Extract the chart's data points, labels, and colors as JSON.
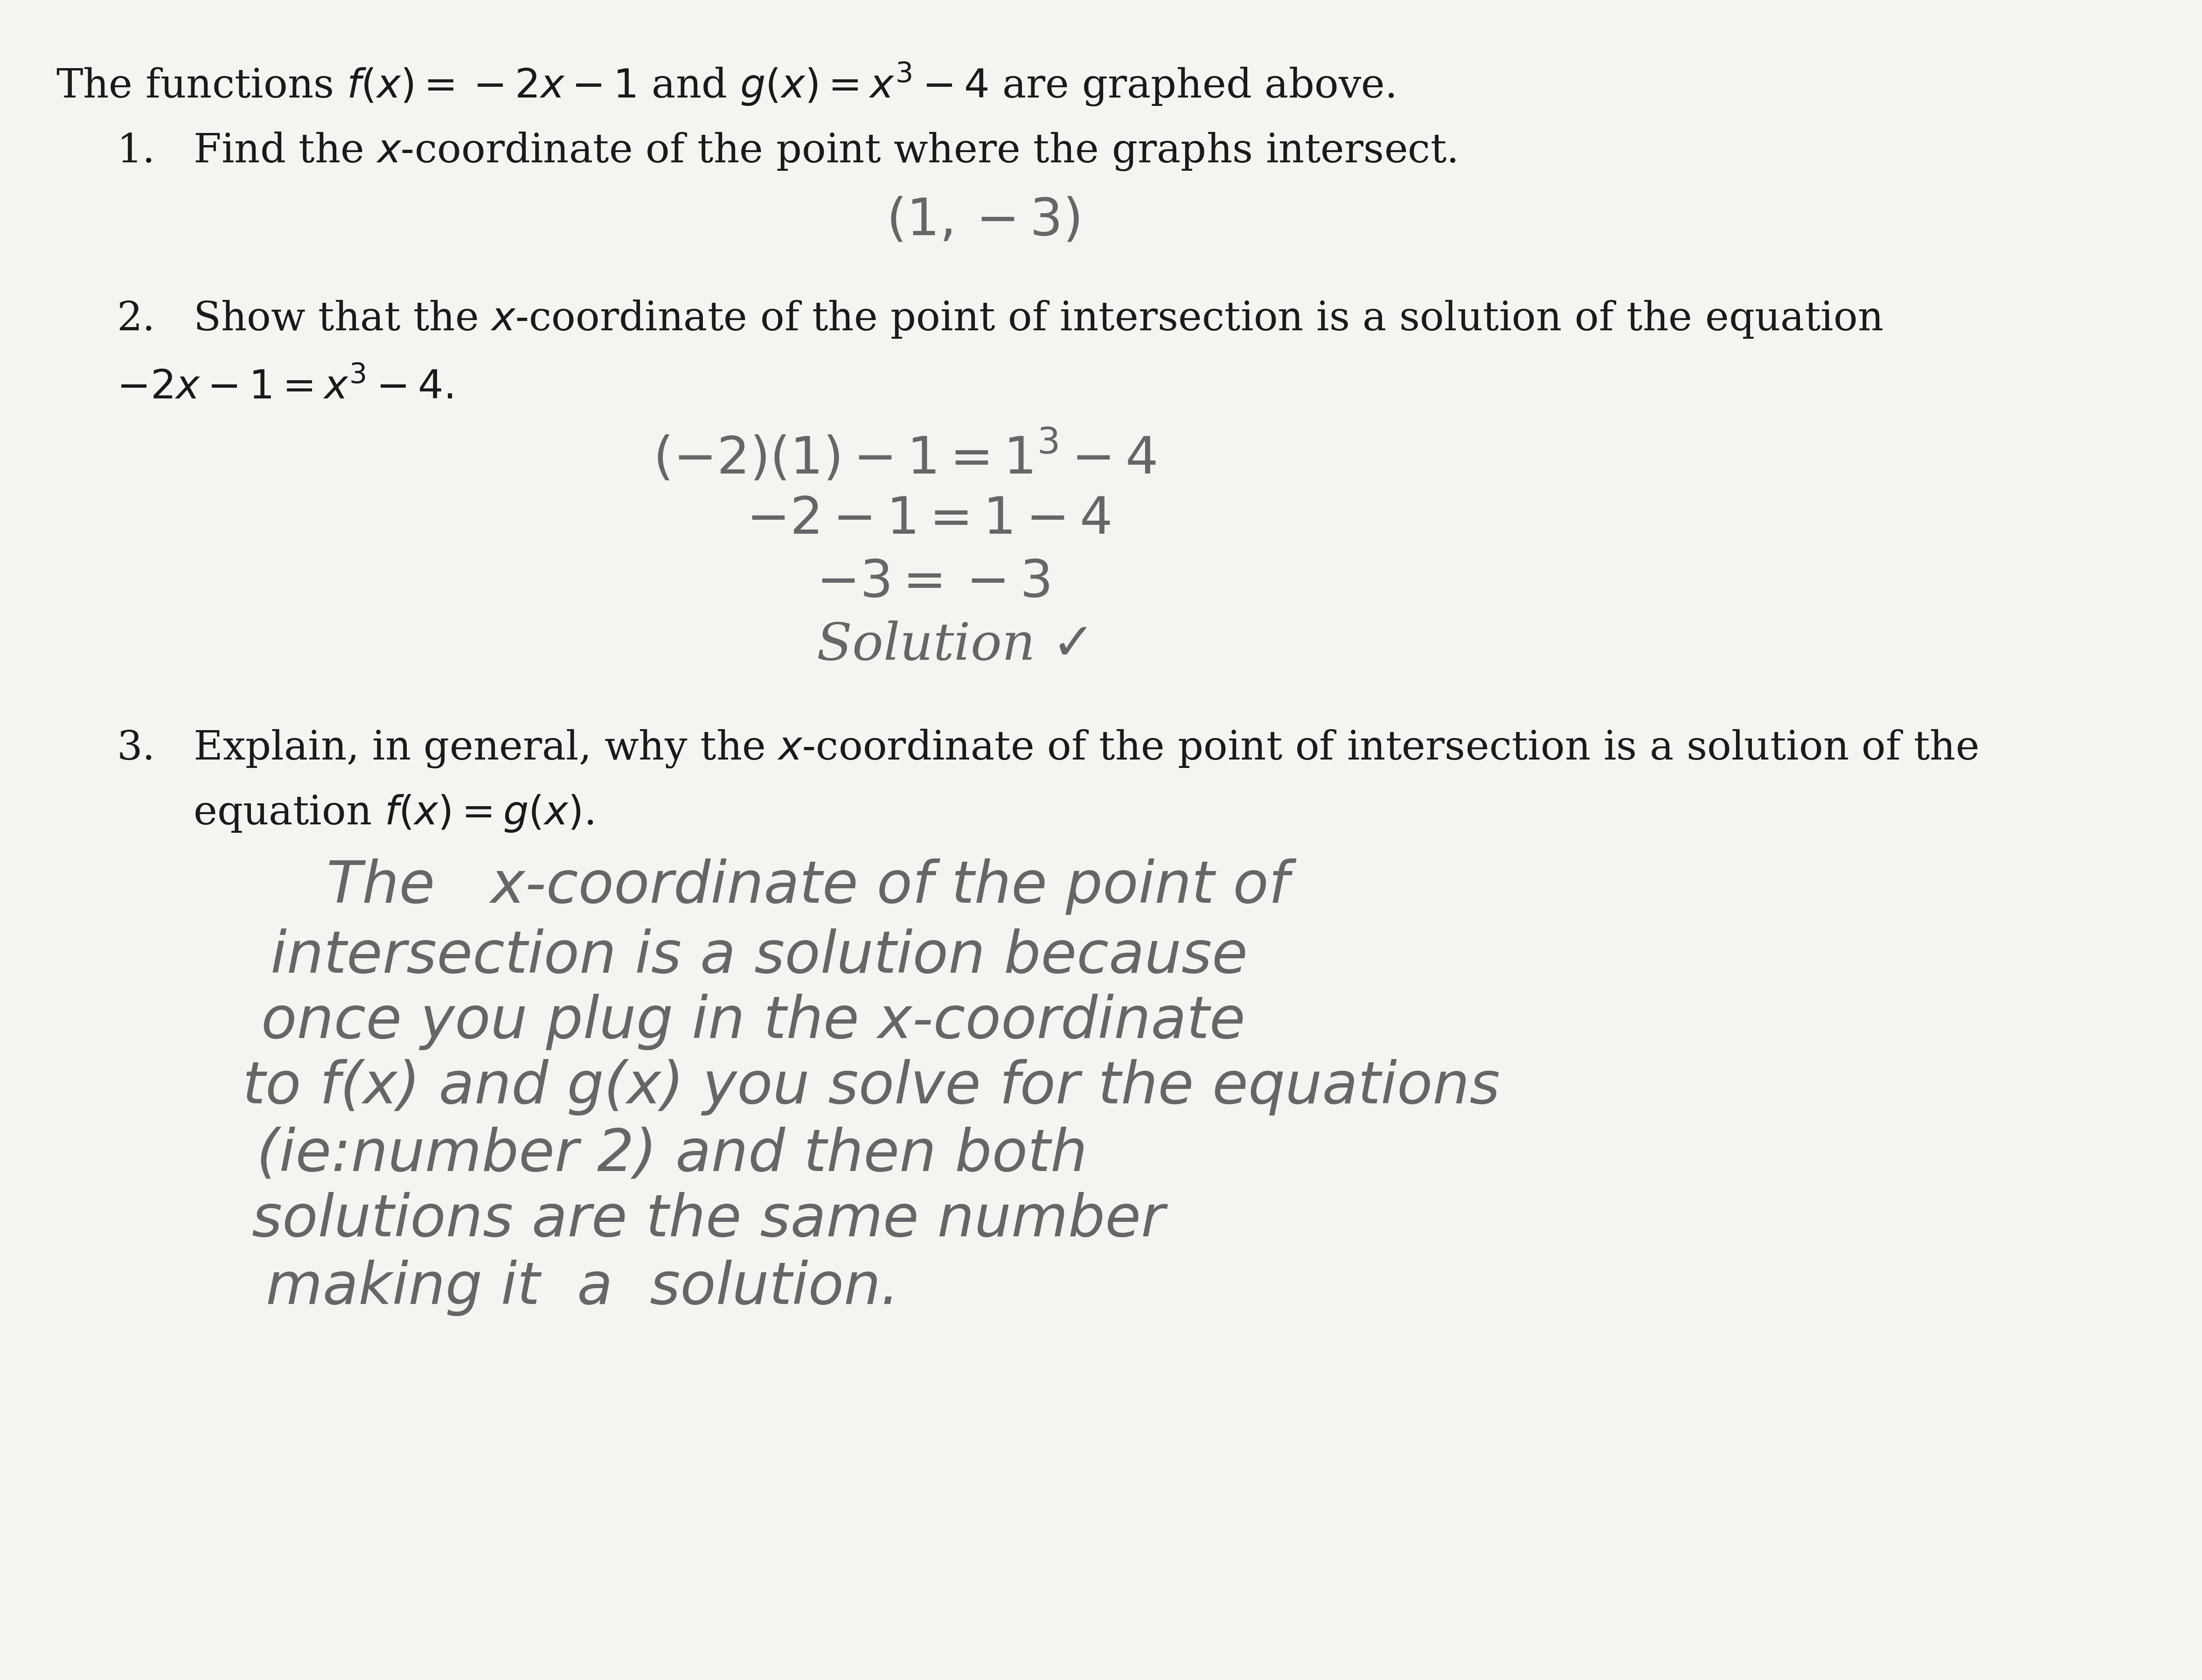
{
  "background_color": "#f5f4f1",
  "text_color": "#1a1a1a",
  "handwriting_color": "#666666",
  "title_line": "The functions $f(x) = -2x - 1$ and $g(x) = x^3 - 4$ are graphed above.",
  "q1_label": "1.   Find the $x$-coordinate of the point where the graphs intersect.",
  "q1_answer": "$(1, -3)$",
  "q2_label": "2.   Show that the $x$-coordinate of the point of intersection is a solution of the equation",
  "q2_equation": "$-2x - 1 = x^3 - 4.$",
  "q2_work_line1": "$(-2)(1) - 1 = 1^3 - 4$",
  "q2_work_line2": "$-2 - 1 = 1 - 4$",
  "q2_work_line3": "$-3 = -3$",
  "q2_work_line4": "Solution $\\checkmark$",
  "q3_label": "3.   Explain, in general, why the $x$-coordinate of the point of intersection is a solution of the",
  "q3_label2": "      equation $f(x) = g(x)$.",
  "q3_answer_line1": "The   x-coordinate of the point of",
  "q3_answer_line2": "intersection is a solution because",
  "q3_answer_line3": "once you plug in the x-coordinate",
  "q3_answer_line4": "to f(x) and g(x) you solve for the equations",
  "q3_answer_line5": "(ie:number 2) and then both",
  "q3_answer_line6": "solutions are the same number",
  "q3_answer_line7": "making it  a  solution."
}
